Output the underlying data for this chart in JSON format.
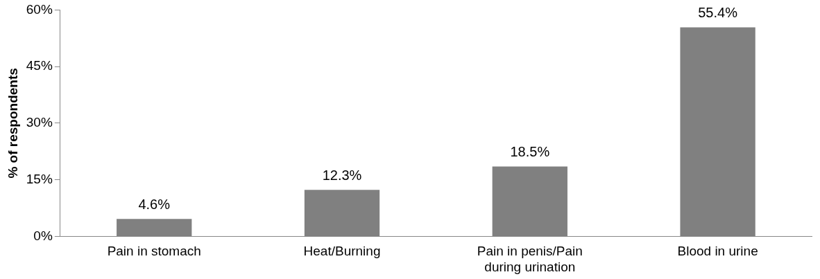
{
  "chart_data": {
    "type": "bar",
    "ylabel": "% of respondents",
    "categories": [
      "Pain in stomach",
      "Heat/Burning",
      "Pain in penis/Pain during urination",
      "Blood in urine"
    ],
    "values": [
      4.6,
      12.3,
      18.5,
      55.4
    ],
    "value_labels": [
      "4.6%",
      "12.3%",
      "18.5%",
      "55.4%"
    ],
    "color": "#808080",
    "ylim": [
      0,
      60
    ],
    "yticks": [
      {
        "value": 0,
        "label": "0%"
      },
      {
        "value": 15,
        "label": "15%"
      },
      {
        "value": 30,
        "label": "30%"
      },
      {
        "value": 45,
        "label": "45%"
      },
      {
        "value": 60,
        "label": "60%"
      }
    ],
    "grid": false,
    "legend": false
  }
}
